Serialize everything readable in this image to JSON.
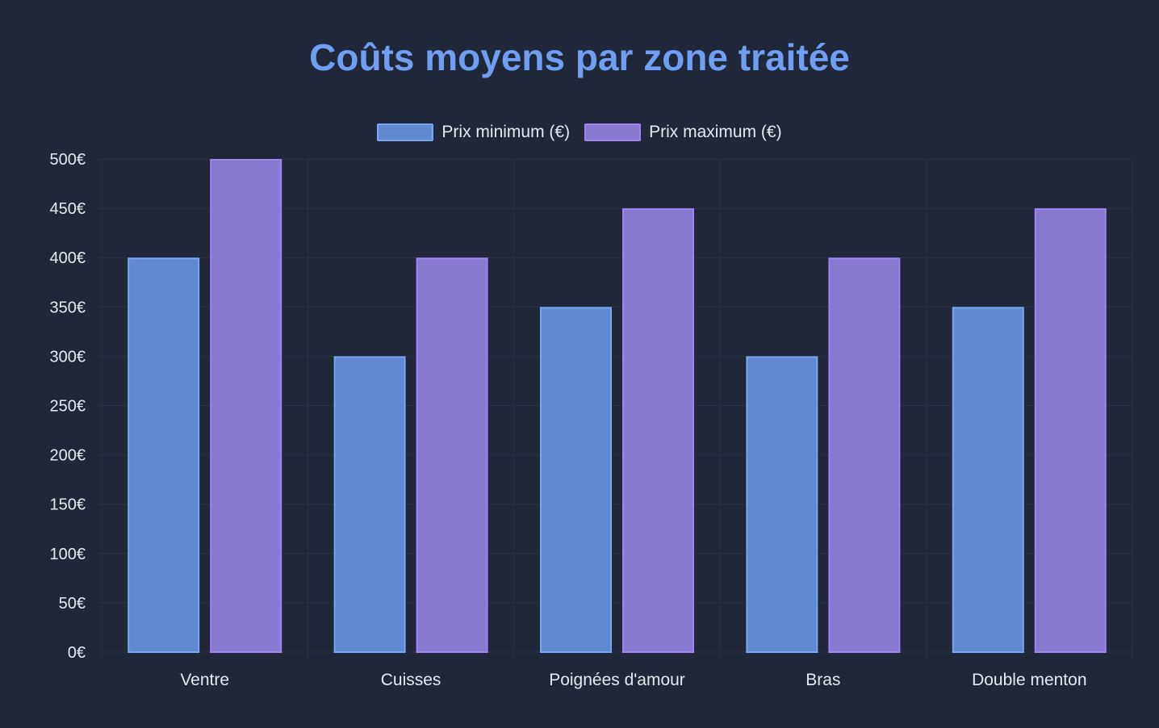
{
  "chart_data": {
    "type": "bar",
    "title": "Coûts moyens par zone traitée",
    "categories": [
      "Ventre",
      "Cuisses",
      "Poignées d'amour",
      "Bras",
      "Double menton"
    ],
    "series": [
      {
        "name": "Prix minimum (€)",
        "values": [
          400,
          300,
          350,
          300,
          350
        ],
        "fill": "#6189cf",
        "border": "#76a6f5"
      },
      {
        "name": "Prix maximum (€)",
        "values": [
          500,
          400,
          450,
          400,
          450
        ],
        "fill": "#8879d0",
        "border": "#a184f0"
      }
    ],
    "y_ticks": [
      "0€",
      "50€",
      "100€",
      "150€",
      "200€",
      "250€",
      "300€",
      "350€",
      "400€",
      "450€",
      "500€"
    ],
    "ylim": [
      0,
      500
    ],
    "grid": true,
    "legend_position": "top-center"
  },
  "colors": {
    "background": "#1f2738",
    "title": "#6f9ef2",
    "text": "#e6e9ef",
    "grid": "#2b3446"
  }
}
